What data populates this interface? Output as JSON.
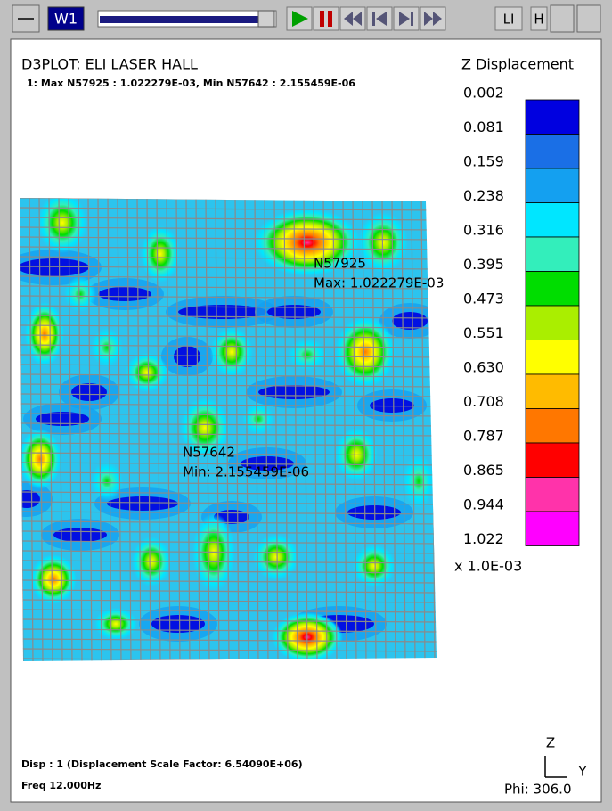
{
  "toolbar": {
    "window": "W1",
    "buttons": [
      "LI",
      "H"
    ]
  },
  "header": {
    "title": "D3PLOT:  ELI LASER HALL",
    "subtitle": "1: Max N57925 : 1.022279E-03, Min N57642 : 2.155459E-06"
  },
  "legend": {
    "title": "Z Displacement",
    "labels": [
      "0.002",
      "0.081",
      "0.159",
      "0.238",
      "0.316",
      "0.395",
      "0.473",
      "0.551",
      "0.630",
      "0.708",
      "0.787",
      "0.865",
      "0.944",
      "1.022"
    ],
    "colors": [
      "#0000e0",
      "#1a6fe6",
      "#14a0f0",
      "#00e6ff",
      "#33eebb",
      "#00dd00",
      "#aaee00",
      "#ffff00",
      "#ffbb00",
      "#ff7700",
      "#ff0000",
      "#ff33aa",
      "#ff00ff"
    ],
    "scale": "x 1.0E-03"
  },
  "annotations": {
    "max_node": "N57925",
    "max_value": "Max: 1.022279E-03",
    "min_node": "N57642",
    "min_value": "Min: 2.155459E-06"
  },
  "footer": {
    "disp": "Disp : 1 (Displacement Scale Factor: 6.54090E+06)",
    "freq": "Freq 12.000Hz",
    "axis_z": "Z",
    "axis_y": "Y",
    "phi": "Phi: 306.0"
  }
}
